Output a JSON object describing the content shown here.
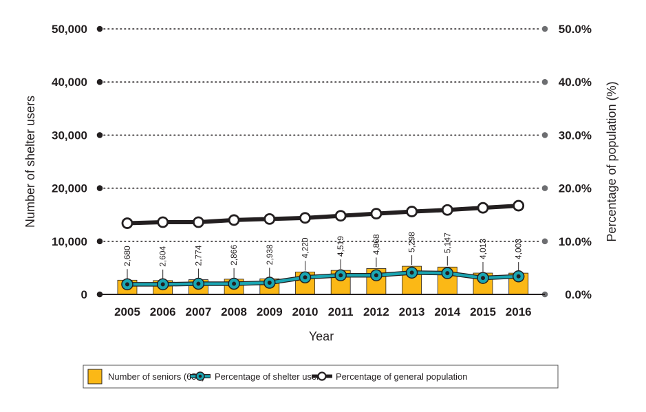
{
  "chart_data": {
    "type": "bar+line",
    "title": "",
    "categories": [
      "2005",
      "2006",
      "2007",
      "2008",
      "2009",
      "2010",
      "2011",
      "2012",
      "2013",
      "2014",
      "2015",
      "2016"
    ],
    "xlabel": "Year",
    "ylabel_left": "Number of shelter users",
    "ylabel_right": "Percentage of population (%)",
    "ylim_left": [
      0,
      50000
    ],
    "ylim_right": [
      0,
      50
    ],
    "yticks_left": [
      "0",
      "10,000",
      "20,000",
      "30,000",
      "40,000",
      "50,000"
    ],
    "yticks_right": [
      "0.0%",
      "10.0%",
      "20.0%",
      "30.0%",
      "40.0%",
      "50.0%"
    ],
    "grid": "horizontal dotted",
    "legend_position": "bottom",
    "series": [
      {
        "name": "Number of seniors (65+)",
        "type": "bar",
        "axis": "left",
        "color": "#fbb816",
        "values": [
          2680,
          2604,
          2774,
          2866,
          2938,
          4220,
          4519,
          4868,
          5298,
          5147,
          4013,
          4003
        ],
        "labels": [
          "2,680",
          "2,604",
          "2,774",
          "2,866",
          "2,938",
          "4,220",
          "4,519",
          "4,868",
          "5,298",
          "5,147",
          "4,013",
          "4,003"
        ]
      },
      {
        "name": "Percentage of shelter users",
        "type": "line",
        "axis": "right",
        "color": "#1aa6b3",
        "values": [
          1.9,
          1.9,
          2.0,
          2.0,
          2.2,
          3.2,
          3.6,
          3.6,
          4.1,
          4.0,
          3.1,
          3.4
        ]
      },
      {
        "name": "Percentage of general population",
        "type": "line",
        "axis": "right",
        "color": "#231f20",
        "values": [
          13.4,
          13.6,
          13.6,
          14.0,
          14.2,
          14.4,
          14.8,
          15.2,
          15.6,
          15.9,
          16.3,
          16.7
        ]
      }
    ]
  }
}
